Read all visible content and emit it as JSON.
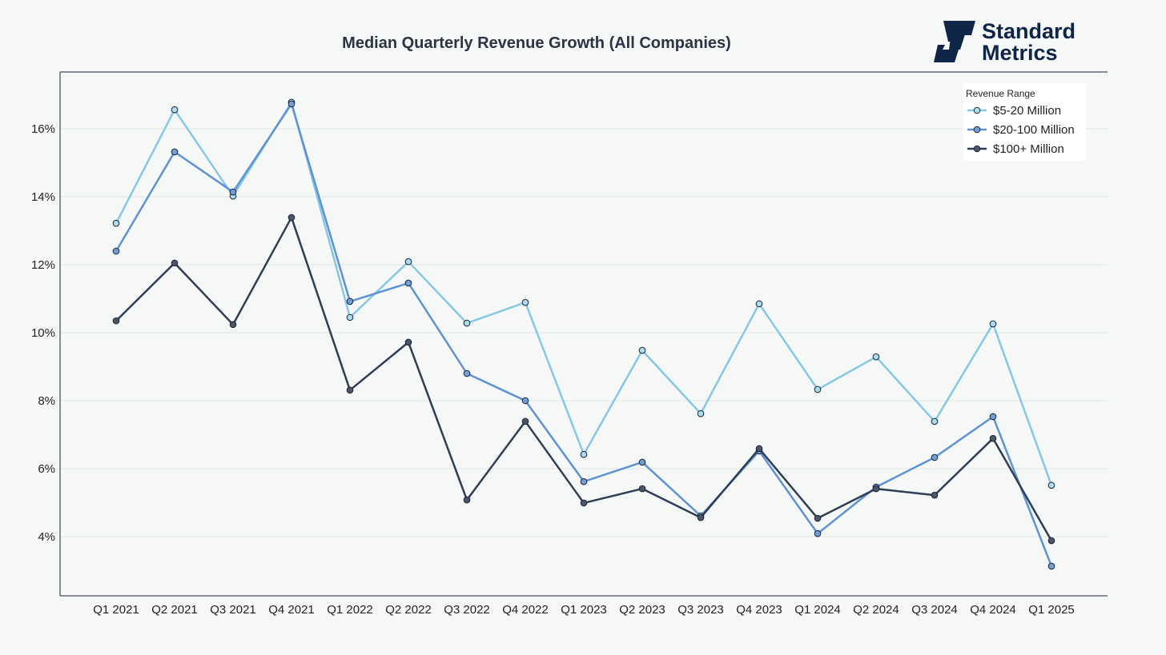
{
  "chart_data": {
    "type": "line",
    "title": "Median Quarterly Revenue Growth (All Companies)",
    "xlabel": "",
    "ylabel": "",
    "ylim": [
      2.2,
      17.6
    ],
    "yticks": [
      4,
      6,
      8,
      10,
      12,
      14,
      16
    ],
    "ytick_suffix": "%",
    "grid": true,
    "legend_title": "Revenue Range",
    "legend_position": "top-right",
    "categories": [
      "Q1 2021",
      "Q2 2021",
      "Q3 2021",
      "Q4 2021",
      "Q1 2022",
      "Q2 2022",
      "Q3 2022",
      "Q4 2022",
      "Q1 2023",
      "Q2 2023",
      "Q3 2023",
      "Q4 2023",
      "Q1 2024",
      "Q2 2024",
      "Q3 2024",
      "Q4 2024",
      "Q1 2025"
    ],
    "series": [
      {
        "name": "$5-20 Million",
        "color": "#85c8e6",
        "marker": "#a9dcf0",
        "values": [
          13.22,
          16.56,
          14.02,
          16.78,
          10.45,
          12.09,
          10.28,
          10.89,
          6.42,
          9.48,
          7.62,
          10.85,
          8.33,
          9.29,
          7.39,
          10.26,
          5.51
        ]
      },
      {
        "name": "$20-100 Million",
        "color": "#5e92d2",
        "marker": "#729fdc",
        "values": [
          12.4,
          15.32,
          14.14,
          16.73,
          10.92,
          11.46,
          8.8,
          8.0,
          5.62,
          6.19,
          4.61,
          6.52,
          4.09,
          5.46,
          6.33,
          7.53,
          3.13
        ]
      },
      {
        "name": "$100+ Million",
        "color": "#2d3e56",
        "marker": "#4b5668",
        "values": [
          10.35,
          12.05,
          10.24,
          13.39,
          8.31,
          9.72,
          5.08,
          7.39,
          4.99,
          5.41,
          4.56,
          6.59,
          4.54,
          5.41,
          5.22,
          6.89,
          3.88
        ]
      }
    ]
  },
  "logo": {
    "line1": "Standard",
    "line2": "Metrics"
  }
}
